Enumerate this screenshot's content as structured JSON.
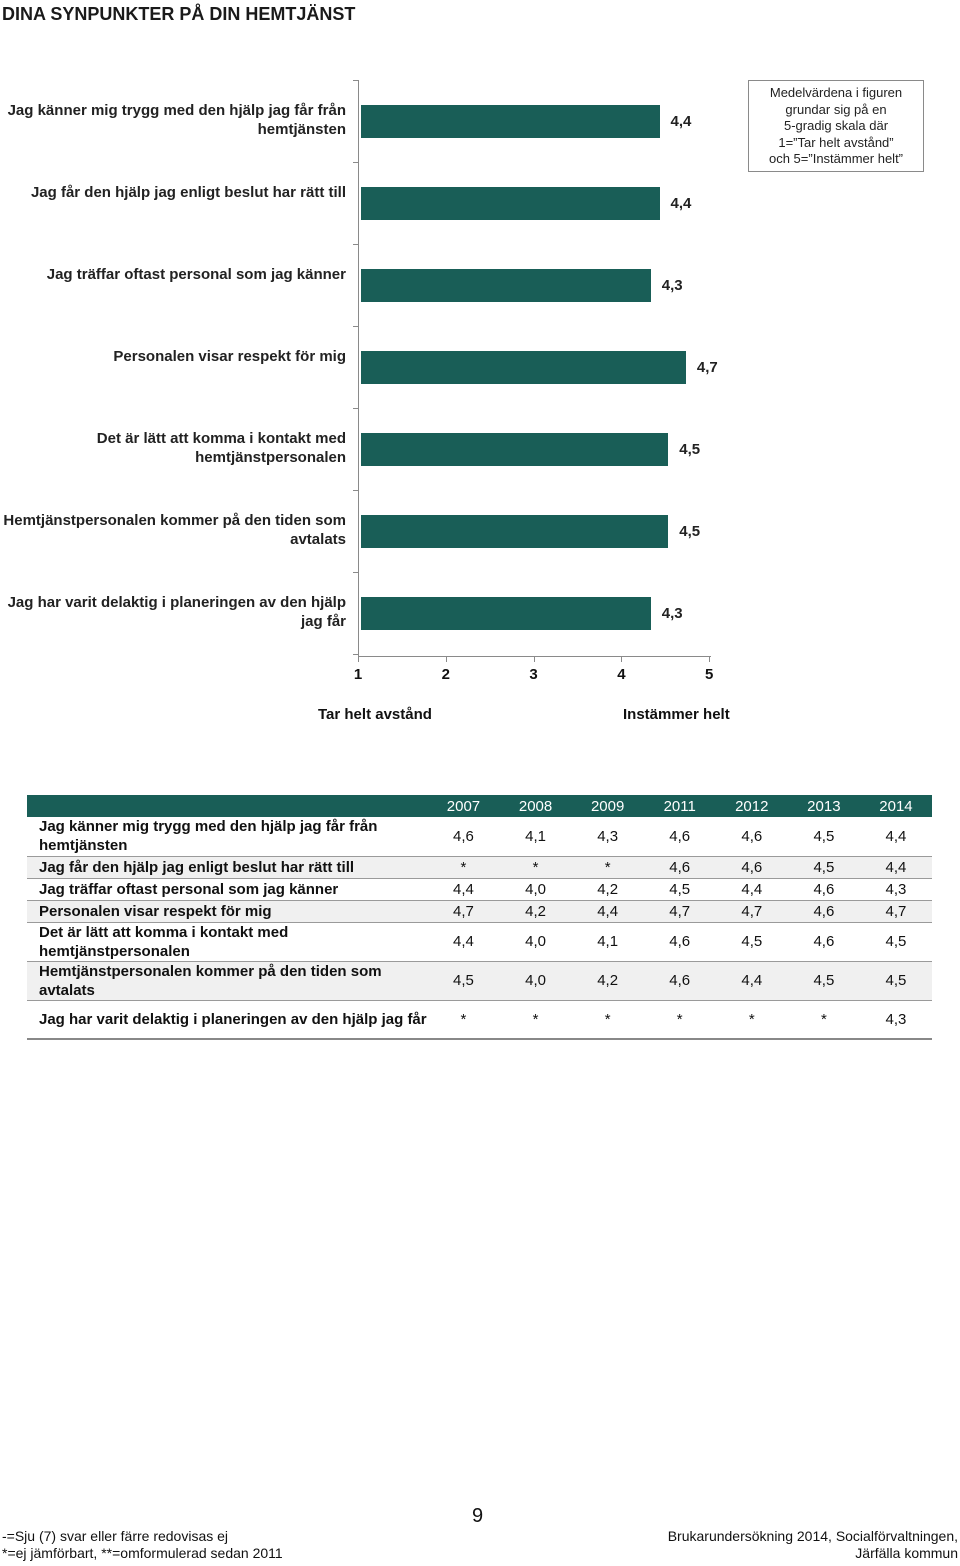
{
  "page_title": "DINA SYNPUNKTER PÅ DIN HEMTJÄNST",
  "legend_note": [
    "Medelvärdena i figuren",
    "grundar sig på en",
    "5-gradig skala där",
    "1=”Tar helt avstånd”",
    "och 5=”Instämmer helt”"
  ],
  "chart_data": {
    "type": "bar",
    "orientation": "horizontal",
    "categories": [
      "Jag känner mig trygg med den hjälp jag får från hemtjänsten",
      "Jag får den hjälp jag enligt beslut har rätt till",
      "Jag träffar oftast personal som jag känner",
      "Personalen visar respekt för mig",
      "Det är lätt att komma i kontakt med hemtjänstpersonalen",
      "Hemtjänstpersonalen kommer på den tiden som avtalats",
      "Jag har varit delaktig i planeringen av den hjälp jag får"
    ],
    "values": [
      4.4,
      4.4,
      4.3,
      4.7,
      4.5,
      4.5,
      4.3
    ],
    "value_labels": [
      "4,4",
      "4,4",
      "4,3",
      "4,7",
      "4,5",
      "4,5",
      "4,3"
    ],
    "xlim": [
      1,
      5
    ],
    "x_ticks": [
      "1",
      "2",
      "3",
      "4",
      "5"
    ],
    "x_low_label": "Tar helt avstånd",
    "x_high_label": "Instämmer helt",
    "bar_color": "#195e57"
  },
  "table": {
    "years": [
      "2007",
      "2008",
      "2009",
      "2011",
      "2012",
      "2013",
      "2014"
    ],
    "rows": [
      {
        "label": "Jag känner mig trygg med den hjälp jag får från hemtjänsten",
        "values": [
          "4,6",
          "4,1",
          "4,3",
          "4,6",
          "4,6",
          "4,5",
          "4,4"
        ]
      },
      {
        "label": "Jag får den hjälp jag enligt beslut har rätt till",
        "values": [
          "*",
          "*",
          "*",
          "4,6",
          "4,6",
          "4,5",
          "4,4"
        ]
      },
      {
        "label": "Jag träffar oftast personal som jag känner",
        "values": [
          "4,4",
          "4,0",
          "4,2",
          "4,5",
          "4,4",
          "4,6",
          "4,3"
        ]
      },
      {
        "label": "Personalen visar respekt för mig",
        "values": [
          "4,7",
          "4,2",
          "4,4",
          "4,7",
          "4,7",
          "4,6",
          "4,7"
        ]
      },
      {
        "label": "Det är lätt att komma i kontakt med hemtjänstpersonalen",
        "values": [
          "4,4",
          "4,0",
          "4,1",
          "4,6",
          "4,5",
          "4,6",
          "4,5"
        ]
      },
      {
        "label": "Hemtjänstpersonalen kommer på den tiden som avtalats",
        "values": [
          "4,5",
          "4,0",
          "4,2",
          "4,6",
          "4,4",
          "4,5",
          "4,5"
        ]
      },
      {
        "label": "Jag har varit delaktig i planeringen av den hjälp jag får",
        "values": [
          "*",
          "*",
          "*",
          "*",
          "*",
          "*",
          "4,3"
        ]
      }
    ]
  },
  "footer": {
    "page_number": "9",
    "left_lines": [
      "-=Sju (7) svar eller färre redovisas ej",
      "*=ej jämförbart, **=omformulerad sedan 2011"
    ],
    "right_lines": [
      "Brukarundersökning 2014, Socialförvaltningen,",
      "Järfälla kommun"
    ]
  }
}
